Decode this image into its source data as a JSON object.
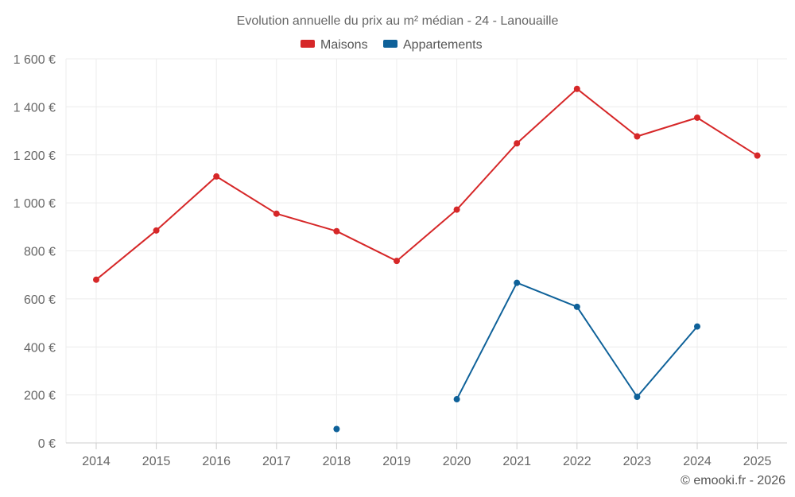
{
  "chart_data": {
    "type": "line",
    "title": "Evolution annuelle du prix au m² médian - 24 - Lanouaille",
    "xlabel": "",
    "ylabel": "",
    "categories": [
      "2014",
      "2015",
      "2016",
      "2017",
      "2018",
      "2019",
      "2020",
      "2021",
      "2022",
      "2023",
      "2024",
      "2025"
    ],
    "ylim": [
      0,
      1600
    ],
    "yticks": [
      0,
      200,
      400,
      600,
      800,
      1000,
      1200,
      1400,
      1600
    ],
    "ytick_labels": [
      "0 €",
      "200 €",
      "400 €",
      "600 €",
      "800 €",
      "1 000 €",
      "1 200 €",
      "1 400 €",
      "1 600 €"
    ],
    "grid": true,
    "legend_position": "top-center",
    "series": [
      {
        "name": "Maisons",
        "color": "#d62728",
        "values": [
          680,
          885,
          1110,
          955,
          882,
          758,
          972,
          1248,
          1475,
          1277,
          1355,
          1197
        ]
      },
      {
        "name": "Appartements",
        "color": "#0e6199",
        "values": [
          null,
          null,
          null,
          null,
          58,
          null,
          182,
          667,
          567,
          192,
          485,
          null
        ]
      }
    ]
  },
  "credit": "© emooki.fr - 2026"
}
